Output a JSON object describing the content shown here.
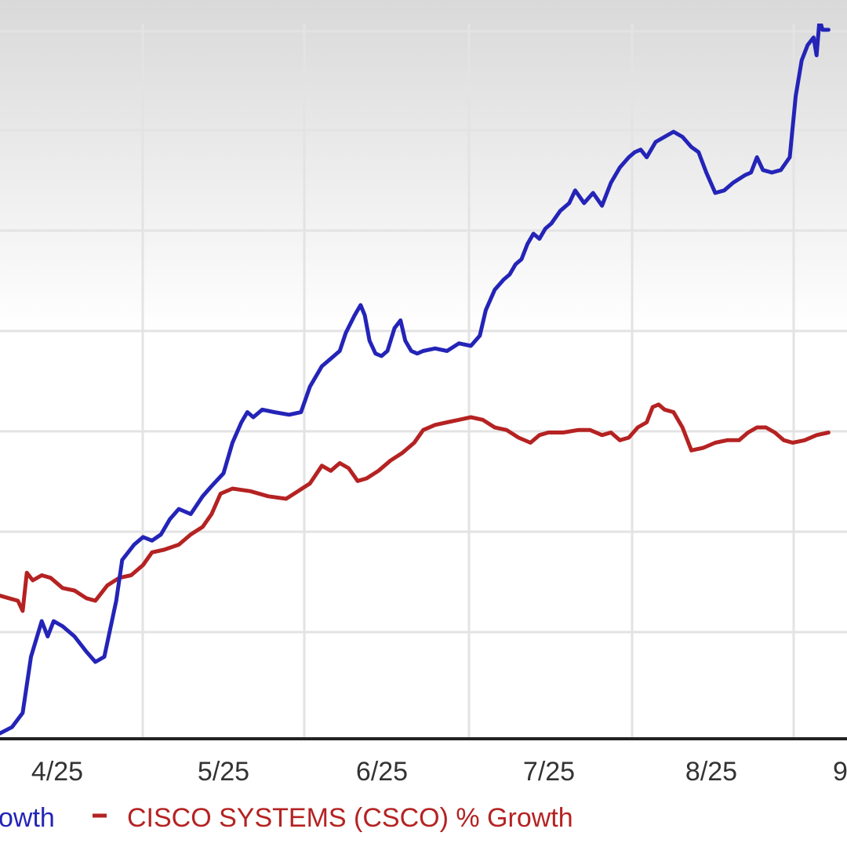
{
  "chart_data": {
    "type": "line",
    "x_ticks": [
      "4/25",
      "5/25",
      "6/25",
      "7/25",
      "8/25",
      "9"
    ],
    "series": [
      {
        "name": "owth",
        "color": "#2424b8",
        "points": [
          [
            0.0,
            0.0
          ],
          [
            0.2,
            1.2
          ],
          [
            0.38,
            4.0
          ],
          [
            0.52,
            15.0
          ],
          [
            0.7,
            22.0
          ],
          [
            0.8,
            19.0
          ],
          [
            0.9,
            22.0
          ],
          [
            1.05,
            21.0
          ],
          [
            1.25,
            19.0
          ],
          [
            1.45,
            16.0
          ],
          [
            1.6,
            14.0
          ],
          [
            1.75,
            15.0
          ],
          [
            1.95,
            26.0
          ],
          [
            2.05,
            34.0
          ],
          [
            2.25,
            37.0
          ],
          [
            2.4,
            38.5
          ],
          [
            2.55,
            37.8
          ],
          [
            2.7,
            39.0
          ],
          [
            2.85,
            42.0
          ],
          [
            3.0,
            44.0
          ],
          [
            3.2,
            43.0
          ],
          [
            3.4,
            46.5
          ],
          [
            3.55,
            48.5
          ],
          [
            3.75,
            51.0
          ],
          [
            3.9,
            57.0
          ],
          [
            4.05,
            61.0
          ],
          [
            4.15,
            63.0
          ],
          [
            4.25,
            62.0
          ],
          [
            4.4,
            63.5
          ],
          [
            4.6,
            63.0
          ],
          [
            4.85,
            62.5
          ],
          [
            5.05,
            63.0
          ],
          [
            5.2,
            68.0
          ],
          [
            5.4,
            72.0
          ],
          [
            5.55,
            73.5
          ],
          [
            5.7,
            75.0
          ],
          [
            5.8,
            78.5
          ],
          [
            5.95,
            82.0
          ],
          [
            6.05,
            84.0
          ],
          [
            6.12,
            82.0
          ],
          [
            6.2,
            77.0
          ],
          [
            6.3,
            74.5
          ],
          [
            6.4,
            74.0
          ],
          [
            6.5,
            75.0
          ],
          [
            6.62,
            79.5
          ],
          [
            6.72,
            81.0
          ],
          [
            6.8,
            77.0
          ],
          [
            6.9,
            75.0
          ],
          [
            7.0,
            74.5
          ],
          [
            7.1,
            75.0
          ],
          [
            7.3,
            75.5
          ],
          [
            7.5,
            75.0
          ],
          [
            7.7,
            76.5
          ],
          [
            7.9,
            76.0
          ],
          [
            8.05,
            78.0
          ],
          [
            8.15,
            83.0
          ],
          [
            8.3,
            87.0
          ],
          [
            8.45,
            89.0
          ],
          [
            8.55,
            90.0
          ],
          [
            8.65,
            92.0
          ],
          [
            8.75,
            93.0
          ],
          [
            8.85,
            96.0
          ],
          [
            8.95,
            98.0
          ],
          [
            9.05,
            97.0
          ],
          [
            9.15,
            99.0
          ],
          [
            9.25,
            100.0
          ],
          [
            9.4,
            102.5
          ],
          [
            9.55,
            104.0
          ],
          [
            9.65,
            106.5
          ],
          [
            9.8,
            104.0
          ],
          [
            9.95,
            106.0
          ],
          [
            10.1,
            103.5
          ],
          [
            10.25,
            108.0
          ],
          [
            10.4,
            111.0
          ],
          [
            10.55,
            113.0
          ],
          [
            10.65,
            114.0
          ],
          [
            10.75,
            114.5
          ],
          [
            10.85,
            113.0
          ],
          [
            11.0,
            116.0
          ],
          [
            11.15,
            117.0
          ],
          [
            11.3,
            118.0
          ],
          [
            11.45,
            117.0
          ],
          [
            11.6,
            115.0
          ],
          [
            11.72,
            114.0
          ],
          [
            11.85,
            110.0
          ],
          [
            12.0,
            106.0
          ],
          [
            12.15,
            106.5
          ],
          [
            12.3,
            108.0
          ],
          [
            12.5,
            109.5
          ],
          [
            12.6,
            110.0
          ],
          [
            12.7,
            113.0
          ],
          [
            12.8,
            110.5
          ],
          [
            12.95,
            110.0
          ],
          [
            13.1,
            110.5
          ],
          [
            13.25,
            113.0
          ],
          [
            13.35,
            125.0
          ],
          [
            13.45,
            132.0
          ],
          [
            13.55,
            135.0
          ],
          [
            13.65,
            136.5
          ],
          [
            13.7,
            133.0
          ],
          [
            13.75,
            140.0
          ],
          [
            13.8,
            138.0
          ],
          [
            13.9,
            138.0
          ]
        ]
      },
      {
        "name": "CISCO SYSTEMS (CSCO) % Growth",
        "color": "#b52222",
        "points": [
          [
            0.0,
            27.0
          ],
          [
            0.15,
            26.5
          ],
          [
            0.3,
            26.0
          ],
          [
            0.38,
            24.0
          ],
          [
            0.45,
            31.5
          ],
          [
            0.55,
            30.0
          ],
          [
            0.7,
            31.0
          ],
          [
            0.85,
            30.5
          ],
          [
            1.05,
            28.5
          ],
          [
            1.25,
            28.0
          ],
          [
            1.45,
            26.5
          ],
          [
            1.6,
            26.0
          ],
          [
            1.8,
            29.0
          ],
          [
            2.0,
            30.5
          ],
          [
            2.2,
            31.0
          ],
          [
            2.4,
            33.0
          ],
          [
            2.55,
            35.5
          ],
          [
            2.75,
            36.0
          ],
          [
            3.0,
            37.0
          ],
          [
            3.2,
            39.0
          ],
          [
            3.4,
            40.5
          ],
          [
            3.55,
            43.0
          ],
          [
            3.7,
            47.0
          ],
          [
            3.9,
            48.0
          ],
          [
            4.2,
            47.5
          ],
          [
            4.5,
            46.5
          ],
          [
            4.8,
            46.0
          ],
          [
            5.0,
            47.5
          ],
          [
            5.2,
            49.0
          ],
          [
            5.4,
            52.5
          ],
          [
            5.55,
            51.5
          ],
          [
            5.7,
            53.0
          ],
          [
            5.85,
            52.0
          ],
          [
            6.0,
            49.5
          ],
          [
            6.15,
            50.0
          ],
          [
            6.35,
            51.5
          ],
          [
            6.55,
            53.5
          ],
          [
            6.75,
            55.0
          ],
          [
            6.95,
            57.0
          ],
          [
            7.1,
            59.5
          ],
          [
            7.3,
            60.5
          ],
          [
            7.5,
            61.0
          ],
          [
            7.7,
            61.5
          ],
          [
            7.9,
            62.0
          ],
          [
            8.1,
            61.5
          ],
          [
            8.3,
            60.0
          ],
          [
            8.5,
            59.5
          ],
          [
            8.7,
            58.0
          ],
          [
            8.9,
            57.0
          ],
          [
            9.05,
            58.5
          ],
          [
            9.2,
            59.0
          ],
          [
            9.45,
            59.0
          ],
          [
            9.7,
            59.5
          ],
          [
            9.9,
            59.5
          ],
          [
            10.1,
            58.5
          ],
          [
            10.25,
            59.0
          ],
          [
            10.4,
            57.5
          ],
          [
            10.55,
            58.0
          ],
          [
            10.7,
            60.0
          ],
          [
            10.85,
            61.0
          ],
          [
            10.95,
            64.0
          ],
          [
            11.05,
            64.5
          ],
          [
            11.15,
            63.5
          ],
          [
            11.3,
            63.0
          ],
          [
            11.45,
            60.0
          ],
          [
            11.6,
            55.5
          ],
          [
            11.8,
            56.0
          ],
          [
            12.0,
            57.0
          ],
          [
            12.2,
            57.5
          ],
          [
            12.4,
            57.5
          ],
          [
            12.55,
            59.0
          ],
          [
            12.7,
            60.0
          ],
          [
            12.85,
            60.0
          ],
          [
            13.0,
            59.0
          ],
          [
            13.15,
            57.5
          ],
          [
            13.3,
            57.0
          ],
          [
            13.5,
            57.5
          ],
          [
            13.7,
            58.5
          ],
          [
            13.9,
            59.0
          ]
        ]
      }
    ]
  }
}
